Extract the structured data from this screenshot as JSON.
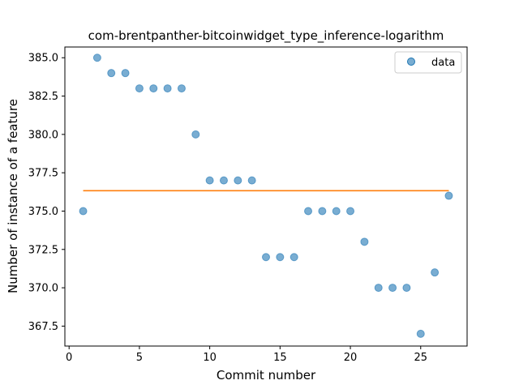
{
  "chart_data": {
    "type": "scatter",
    "title": "com-brentpanther-bitcoinwidget_type_inference-logarithm",
    "xlabel": "Commit number",
    "ylabel": "Number of instance of a feature",
    "xlim": [
      -0.3,
      28.3
    ],
    "ylim": [
      366.2,
      385.7
    ],
    "xticks": [
      0,
      5,
      10,
      15,
      20,
      25
    ],
    "yticks": [
      367.5,
      370.0,
      372.5,
      375.0,
      377.5,
      380.0,
      382.5,
      385.0
    ],
    "xtick_labels": [
      "0",
      "5",
      "10",
      "15",
      "20",
      "25"
    ],
    "ytick_labels": [
      "367.5",
      "370.0",
      "372.5",
      "375.0",
      "377.5",
      "380.0",
      "382.5",
      "385.0"
    ],
    "series": [
      {
        "name": "data",
        "kind": "scatter",
        "color": "#1f77b4",
        "x": [
          1,
          2,
          3,
          4,
          5,
          6,
          7,
          8,
          9,
          10,
          11,
          12,
          13,
          14,
          15,
          16,
          17,
          18,
          19,
          20,
          21,
          22,
          23,
          24,
          25,
          26,
          27
        ],
        "y": [
          375,
          385,
          384,
          384,
          383,
          383,
          383,
          383,
          380,
          377,
          377,
          377,
          377,
          372,
          372,
          372,
          375,
          375,
          375,
          375,
          373,
          370,
          370,
          370,
          367,
          371,
          376
        ]
      },
      {
        "name": "fit",
        "kind": "line",
        "color": "#ff7f0e",
        "x": [
          1,
          27
        ],
        "y": [
          376.33,
          376.33
        ]
      }
    ],
    "legend": {
      "position": "top-right",
      "entries": [
        "data"
      ]
    },
    "grid": false
  }
}
